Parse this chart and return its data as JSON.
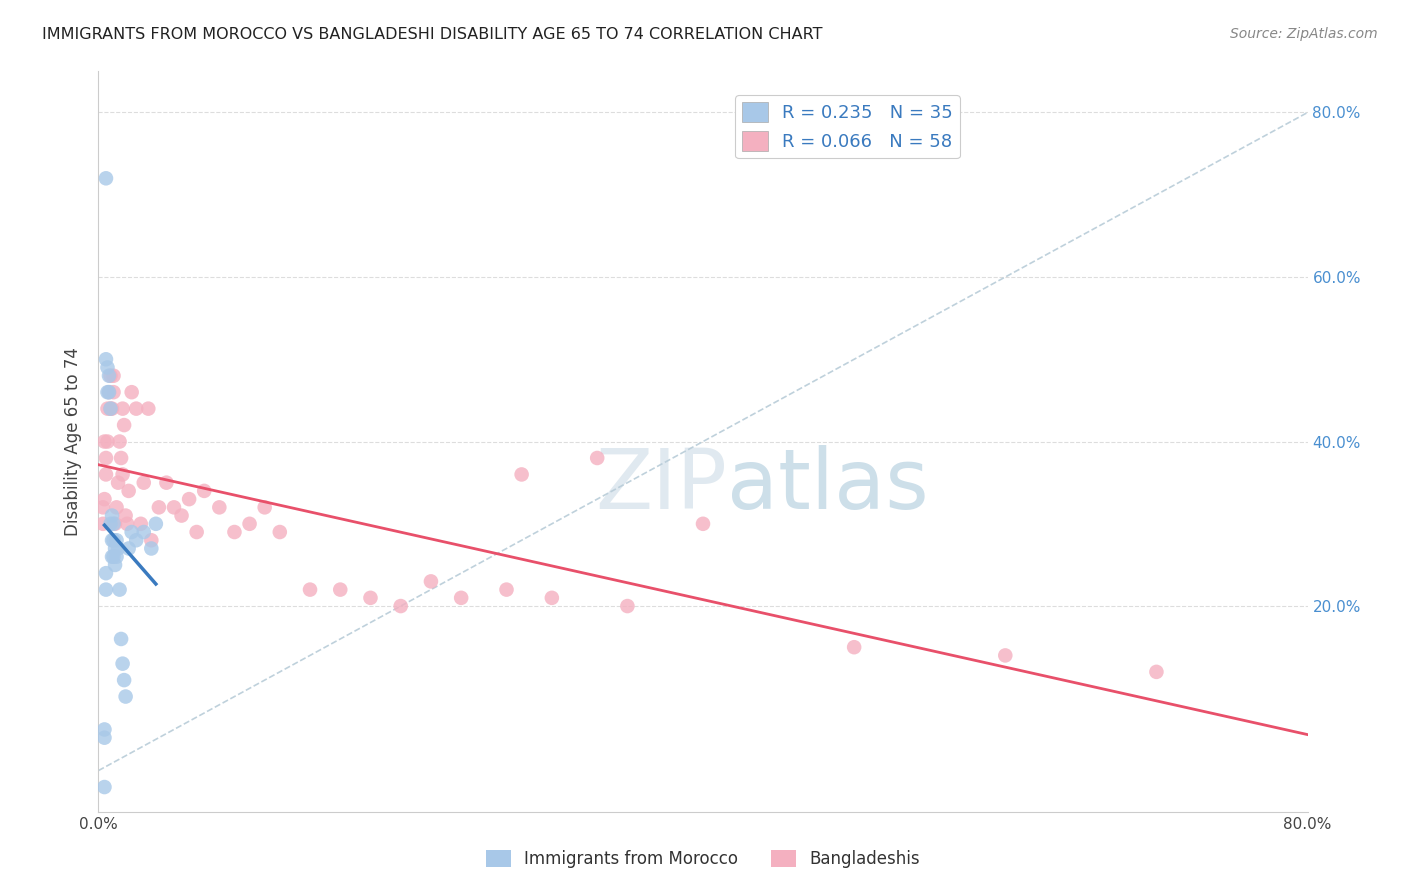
{
  "title": "IMMIGRANTS FROM MOROCCO VS BANGLADESHI DISABILITY AGE 65 TO 74 CORRELATION CHART",
  "source": "Source: ZipAtlas.com",
  "ylabel": "Disability Age 65 to 74",
  "x_min": 0.0,
  "x_max": 0.8,
  "y_min": -0.05,
  "y_max": 0.85,
  "y_ticks_right": [
    0.2,
    0.4,
    0.6,
    0.8
  ],
  "y_tick_labels_right": [
    "20.0%",
    "40.0%",
    "60.0%",
    "80.0%"
  ],
  "color_morocco": "#a8c8e8",
  "color_bangladesh": "#f4b0c0",
  "color_morocco_line": "#3a7abf",
  "color_bangladesh_line": "#e8506a",
  "color_dashed": "#b8ccd8",
  "legend_morocco_label": "R = 0.235   N = 35",
  "legend_bangladesh_label": "R = 0.066   N = 58",
  "legend_bottom_morocco": "Immigrants from Morocco",
  "legend_bottom_bangladesh": "Bangladeshis",
  "watermark_zip": "ZIP",
  "watermark_atlas": "atlas",
  "background_color": "#ffffff",
  "grid_color": "#dddddd",
  "morocco_x": [
    0.004,
    0.004,
    0.004,
    0.005,
    0.005,
    0.005,
    0.005,
    0.006,
    0.006,
    0.007,
    0.007,
    0.008,
    0.008,
    0.009,
    0.009,
    0.009,
    0.01,
    0.01,
    0.01,
    0.011,
    0.011,
    0.012,
    0.012,
    0.013,
    0.014,
    0.015,
    0.016,
    0.017,
    0.018,
    0.02,
    0.022,
    0.025,
    0.03,
    0.035,
    0.038
  ],
  "morocco_y": [
    0.04,
    0.05,
    -0.02,
    0.72,
    0.22,
    0.24,
    0.5,
    0.46,
    0.49,
    0.48,
    0.46,
    0.44,
    0.3,
    0.31,
    0.28,
    0.26,
    0.3,
    0.28,
    0.26,
    0.27,
    0.25,
    0.28,
    0.26,
    0.27,
    0.22,
    0.16,
    0.13,
    0.11,
    0.09,
    0.27,
    0.29,
    0.28,
    0.29,
    0.27,
    0.3
  ],
  "bangladesh_x": [
    0.003,
    0.003,
    0.004,
    0.004,
    0.005,
    0.005,
    0.006,
    0.006,
    0.007,
    0.008,
    0.008,
    0.009,
    0.01,
    0.01,
    0.011,
    0.012,
    0.013,
    0.014,
    0.015,
    0.016,
    0.016,
    0.017,
    0.018,
    0.019,
    0.02,
    0.022,
    0.025,
    0.028,
    0.03,
    0.033,
    0.035,
    0.04,
    0.045,
    0.05,
    0.055,
    0.06,
    0.065,
    0.07,
    0.08,
    0.09,
    0.1,
    0.11,
    0.12,
    0.14,
    0.16,
    0.18,
    0.2,
    0.22,
    0.24,
    0.27,
    0.3,
    0.35,
    0.4,
    0.5,
    0.6,
    0.7,
    0.28,
    0.33
  ],
  "bangladesh_y": [
    0.3,
    0.32,
    0.33,
    0.4,
    0.36,
    0.38,
    0.4,
    0.44,
    0.46,
    0.44,
    0.48,
    0.44,
    0.46,
    0.48,
    0.3,
    0.32,
    0.35,
    0.4,
    0.38,
    0.36,
    0.44,
    0.42,
    0.31,
    0.3,
    0.34,
    0.46,
    0.44,
    0.3,
    0.35,
    0.44,
    0.28,
    0.32,
    0.35,
    0.32,
    0.31,
    0.33,
    0.29,
    0.34,
    0.32,
    0.29,
    0.3,
    0.32,
    0.29,
    0.22,
    0.22,
    0.21,
    0.2,
    0.23,
    0.21,
    0.22,
    0.21,
    0.2,
    0.3,
    0.15,
    0.14,
    0.12,
    0.36,
    0.38
  ]
}
